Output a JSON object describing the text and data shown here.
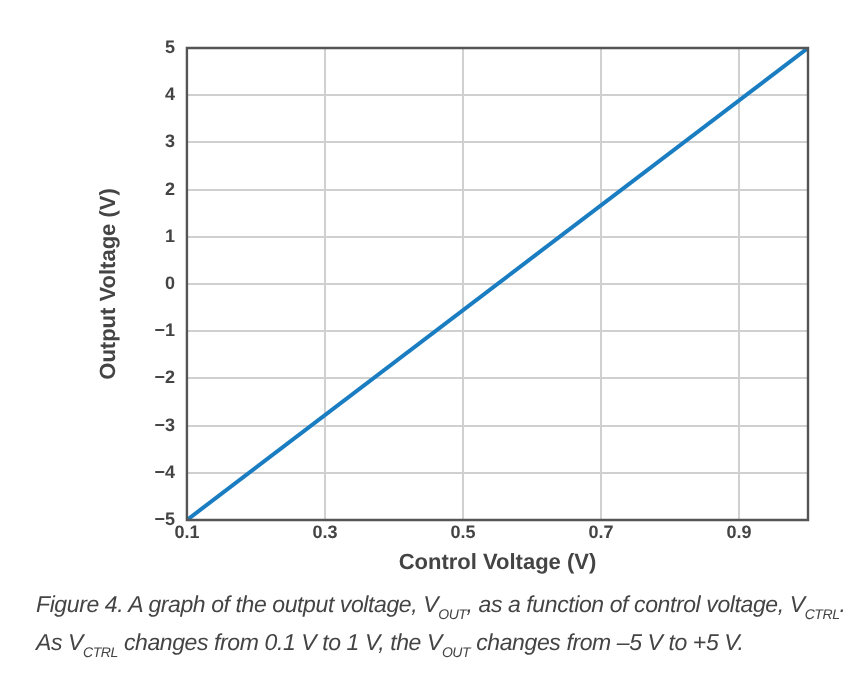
{
  "chart_data": {
    "type": "line",
    "xlabel": "Control Voltage (V)",
    "ylabel": "Output Voltage (V)",
    "x": [
      0.1,
      1.0
    ],
    "series": [
      {
        "color": "#1a7dc2",
        "values": [
          -5,
          5
        ]
      }
    ],
    "xlim": [
      0.1,
      1.0
    ],
    "xticks": [
      0.1,
      0.3,
      0.5,
      0.7,
      0.9
    ],
    "ylim": [
      -5,
      5
    ],
    "yticks": [
      -5,
      -4,
      -3,
      -2,
      -1,
      0,
      1,
      2,
      3,
      4,
      5
    ],
    "grid": true,
    "legend": false,
    "marker": "none",
    "line_style": "solid",
    "annotations": [
      "Figure 4. A graph of the output voltage, V$_{OUT}$, as a function of control voltage, V$_{CTRL}$. As V$_{CTRL}$ changes from 0.1 V to 1 V, the V$_{OUT}$ changes from –5 V to +5 V."
    ]
  }
}
